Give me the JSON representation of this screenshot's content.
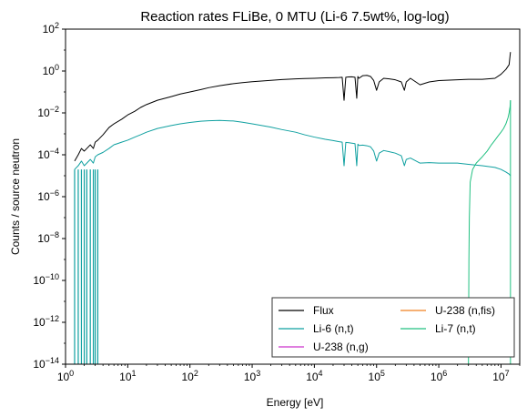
{
  "chart_data": {
    "type": "line",
    "title": "Reaction rates FLiBe, 0 MTU (Li-6 7.5wt%, log-log)",
    "xlabel": "Energy [eV]",
    "ylabel": "Counts / source neutron",
    "xscale": "log",
    "yscale": "log",
    "xlim": [
      1,
      20000000
    ],
    "ylim": [
      1e-14,
      100
    ],
    "grid": false,
    "legend_position": "lower-right",
    "legend_columns": 2,
    "x_ticks": [
      {
        "value": 1,
        "base": "10",
        "exp": "0"
      },
      {
        "value": 10,
        "base": "10",
        "exp": "1"
      },
      {
        "value": 100,
        "base": "10",
        "exp": "2"
      },
      {
        "value": 1000,
        "base": "10",
        "exp": "3"
      },
      {
        "value": 10000,
        "base": "10",
        "exp": "4"
      },
      {
        "value": 100000,
        "base": "10",
        "exp": "5"
      },
      {
        "value": 1000000,
        "base": "10",
        "exp": "6"
      },
      {
        "value": 10000000,
        "base": "10",
        "exp": "7"
      }
    ],
    "y_ticks": [
      {
        "value": 1e-14,
        "base": "10",
        "exp": "−14"
      },
      {
        "value": 1e-12,
        "base": "10",
        "exp": "−12"
      },
      {
        "value": 1e-10,
        "base": "10",
        "exp": "−10"
      },
      {
        "value": 1e-08,
        "base": "10",
        "exp": "−8"
      },
      {
        "value": 1e-06,
        "base": "10",
        "exp": "−6"
      },
      {
        "value": 0.0001,
        "base": "10",
        "exp": "−4"
      },
      {
        "value": 0.01,
        "base": "10",
        "exp": "−2"
      },
      {
        "value": 1,
        "base": "10",
        "exp": "0"
      },
      {
        "value": 100,
        "base": "10",
        "exp": "2"
      }
    ],
    "series": [
      {
        "name": "Flux",
        "color": "#000000",
        "x": [
          1.4,
          1.6,
          1.8,
          2,
          2.2,
          2.5,
          2.8,
          3,
          3.3,
          4,
          5,
          6,
          8,
          10,
          13,
          16,
          20,
          30,
          50,
          70,
          100,
          150,
          200,
          300,
          500,
          700,
          1000,
          2000,
          3000,
          5000,
          7000,
          10000,
          15000,
          20000,
          25000,
          28000,
          30000,
          32000,
          35000,
          40000,
          45000,
          48000,
          50000,
          52000,
          60000,
          70000,
          80000,
          90000,
          100000,
          110000,
          130000,
          160000,
          200000,
          250000,
          280000,
          300000,
          350000,
          500000,
          700000,
          1000000,
          2000000,
          3000000,
          5000000,
          8000000,
          10000000,
          12000000,
          13500000,
          14200000
        ],
        "y": [
          5e-05,
          0.0001,
          0.0002,
          0.00015,
          0.0002,
          0.0003,
          0.0002,
          0.0004,
          0.0005,
          0.0009,
          0.002,
          0.003,
          0.005,
          0.008,
          0.012,
          0.018,
          0.025,
          0.04,
          0.06,
          0.08,
          0.1,
          0.13,
          0.16,
          0.2,
          0.25,
          0.28,
          0.31,
          0.36,
          0.39,
          0.42,
          0.44,
          0.45,
          0.47,
          0.48,
          0.49,
          0.5,
          0.04,
          0.5,
          0.52,
          0.53,
          0.5,
          0.05,
          0.55,
          0.45,
          0.6,
          0.62,
          0.55,
          0.35,
          0.12,
          0.3,
          0.45,
          0.42,
          0.38,
          0.3,
          0.12,
          0.3,
          0.45,
          0.22,
          0.3,
          0.35,
          0.38,
          0.4,
          0.4,
          0.45,
          0.7,
          1.2,
          2,
          8
        ]
      },
      {
        "name": "Li-6 (n,t)",
        "color": "#0fa0a0",
        "x": [
          1.4,
          1.6,
          1.8,
          2,
          2.2,
          2.5,
          2.8,
          3,
          3.3,
          4,
          5,
          6,
          8,
          10,
          13,
          16,
          20,
          30,
          50,
          70,
          100,
          150,
          200,
          300,
          500,
          700,
          1000,
          2000,
          3000,
          5000,
          7000,
          10000,
          15000,
          20000,
          25000,
          28000,
          30000,
          32000,
          35000,
          40000,
          45000,
          48000,
          50000,
          52000,
          60000,
          70000,
          80000,
          90000,
          100000,
          110000,
          130000,
          160000,
          200000,
          250000,
          280000,
          300000,
          350000,
          500000,
          700000,
          1000000,
          2000000,
          3000000,
          5000000,
          8000000,
          10000000,
          12000000,
          13500000,
          14200000
        ],
        "y": [
          2e-05,
          3e-05,
          5e-05,
          3e-05,
          4e-05,
          6e-05,
          4e-05,
          8e-05,
          0.0001,
          0.00013,
          0.0002,
          0.0003,
          0.0004,
          0.0005,
          0.0007,
          0.0009,
          0.0012,
          0.0018,
          0.0025,
          0.003,
          0.0035,
          0.004,
          0.0042,
          0.0044,
          0.0041,
          0.0036,
          0.003,
          0.0021,
          0.0016,
          0.0012,
          0.0009,
          0.0007,
          0.00055,
          0.00048,
          0.00042,
          0.0004,
          3e-05,
          0.00039,
          0.00038,
          0.00036,
          0.00034,
          3e-05,
          0.00032,
          0.00028,
          0.00029,
          0.00027,
          0.00024,
          0.00015,
          5e-05,
          0.00012,
          0.00016,
          0.00014,
          0.00012,
          9e-05,
          3e-05,
          6e-05,
          7e-05,
          4e-05,
          4.2e-05,
          4e-05,
          4e-05,
          3.5e-05,
          3e-05,
          2.5e-05,
          2e-05,
          1.5e-05,
          1.2e-05,
          1e-05
        ]
      },
      {
        "name": "U-238 (n,g)",
        "color": "#cc33cc",
        "x": [],
        "y": []
      },
      {
        "name": "U-238 (n,fis)",
        "color": "#f08020",
        "x": [],
        "y": []
      },
      {
        "name": "Li-7 (n,t)",
        "color": "#20c080",
        "x": [
          3000000,
          3050000,
          3100000,
          3200000,
          3500000,
          4000000,
          5000000,
          6000000,
          7000000,
          8000000,
          9000000,
          10000000,
          11000000,
          12000000,
          13000000,
          13500000,
          14000000,
          14200000
        ],
        "y": [
          1e-14,
          1e-09,
          1e-07,
          5e-06,
          2e-05,
          4e-05,
          8e-05,
          0.00015,
          0.0003,
          0.0005,
          0.0008,
          0.0012,
          0.0018,
          0.003,
          0.006,
          0.01,
          0.02,
          0.04
        ]
      }
    ]
  }
}
